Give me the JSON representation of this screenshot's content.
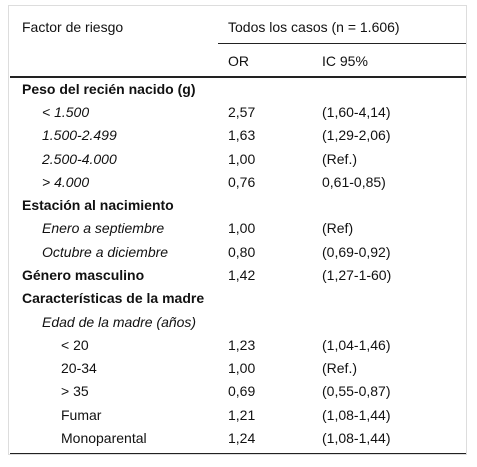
{
  "header": {
    "factor": "Factor de riesgo",
    "group": "Todos los casos (n = 1.606)",
    "or": "OR",
    "ic": "IC 95%"
  },
  "rows": [
    [
      "Peso del recién nacido (g)"
    ],
    [
      "< 1.500",
      "2,57",
      "(1,60-4,14)"
    ],
    [
      "1.500-2.499",
      "1,63",
      "(1,29-2,06)"
    ],
    [
      "2.500-4.000",
      "1,00",
      "(Ref.)"
    ],
    [
      "> 4.000",
      "0,76",
      "0,61-0,85)"
    ],
    [
      "Estación al nacimiento"
    ],
    [
      "Enero a septiembre",
      "1,00",
      "(Ref)"
    ],
    [
      "Octubre a diciembre",
      "0,80",
      "(0,69-0,92)"
    ],
    [
      "Género masculino",
      "1,42",
      "(1,27-1-60)"
    ],
    [
      "Características de la madre"
    ],
    [
      "Edad de la madre (años)"
    ],
    [
      "< 20",
      "1,23",
      "(1,04-1,46)"
    ],
    [
      "20-34",
      "1,00",
      "(Ref.)"
    ],
    [
      "> 35",
      "0,69",
      "(0,55-0,87)"
    ],
    [
      "Fumar",
      "1,21",
      "(1,08-1,44)"
    ],
    [
      "Monoparental",
      "1,24",
      "(1,08-1,44)"
    ]
  ]
}
